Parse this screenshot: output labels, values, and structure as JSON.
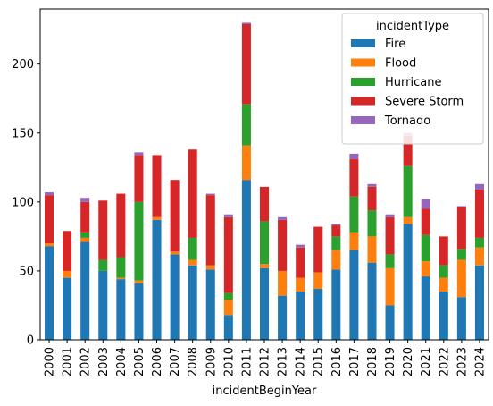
{
  "chart_data": {
    "type": "bar",
    "stacked": true,
    "xlabel": "incidentBeginYear",
    "ylabel": "",
    "ylim": [
      0,
      240
    ],
    "yticks": [
      0,
      50,
      100,
      150,
      200
    ],
    "categories": [
      "2000",
      "2001",
      "2002",
      "2003",
      "2004",
      "2005",
      "2006",
      "2007",
      "2008",
      "2009",
      "2010",
      "2011",
      "2012",
      "2013",
      "2014",
      "2015",
      "2016",
      "2017",
      "2018",
      "2019",
      "2020",
      "2021",
      "2022",
      "2023",
      "2024"
    ],
    "legend": {
      "title": "incidentType",
      "position": "upper-right"
    },
    "series": [
      {
        "name": "Fire",
        "color": "#1f77b4",
        "values": [
          68,
          45,
          71,
          50,
          44,
          41,
          87,
          62,
          54,
          51,
          18,
          116,
          52,
          32,
          35,
          37,
          51,
          65,
          56,
          25,
          84,
          46,
          35,
          31,
          54
        ]
      },
      {
        "name": "Flood",
        "color": "#ff7f0e",
        "values": [
          2,
          5,
          3,
          0,
          1,
          2,
          2,
          2,
          4,
          3,
          11,
          25,
          3,
          18,
          10,
          12,
          14,
          13,
          19,
          27,
          5,
          11,
          10,
          27,
          13
        ]
      },
      {
        "name": "Hurricane",
        "color": "#2ca02c",
        "values": [
          0,
          0,
          4,
          8,
          15,
          57,
          0,
          0,
          16,
          0,
          5,
          30,
          31,
          0,
          0,
          0,
          10,
          26,
          19,
          10,
          37,
          19,
          9,
          8,
          7
        ]
      },
      {
        "name": "Severe Storm",
        "color": "#d62728",
        "values": [
          35,
          29,
          22,
          43,
          46,
          34,
          45,
          52,
          64,
          51,
          55,
          58,
          25,
          37,
          22,
          33,
          8,
          27,
          17,
          27,
          22,
          19,
          21,
          30,
          35
        ]
      },
      {
        "name": "Tornado",
        "color": "#9467bd",
        "values": [
          2,
          0,
          3,
          0,
          0,
          2,
          0,
          0,
          0,
          1,
          2,
          1,
          0,
          2,
          2,
          0,
          1,
          4,
          2,
          2,
          2,
          7,
          0,
          1,
          4
        ]
      }
    ]
  }
}
